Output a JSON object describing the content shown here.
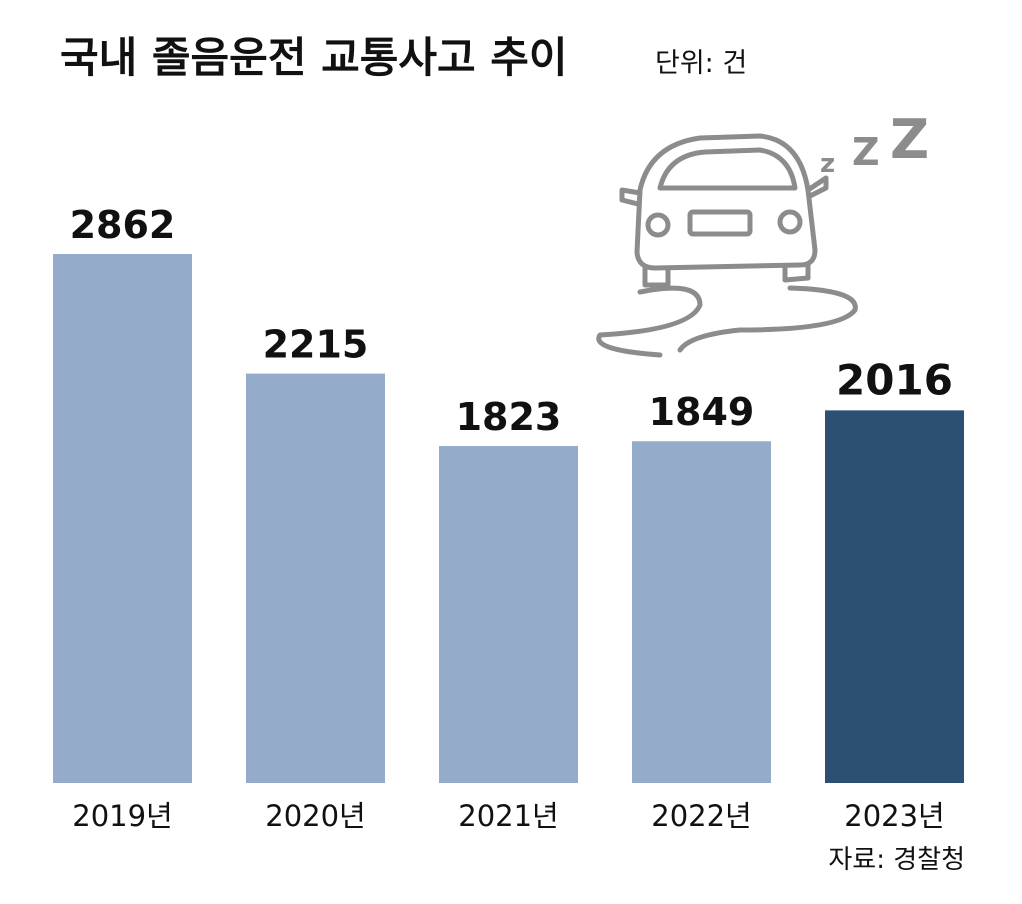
{
  "chart_data": {
    "type": "bar",
    "title": "국내 졸음운전 교통사고 추이",
    "subtitle": "단위: 건",
    "categories": [
      "2019년",
      "2020년",
      "2021년",
      "2022년",
      "2023년"
    ],
    "values": [
      2862,
      2215,
      1823,
      1849,
      2016
    ],
    "colors": [
      "#94acc9",
      "#94acc9",
      "#94acc9",
      "#94acc9",
      "#2e4f74"
    ],
    "source": "자료: 경찰청"
  }
}
